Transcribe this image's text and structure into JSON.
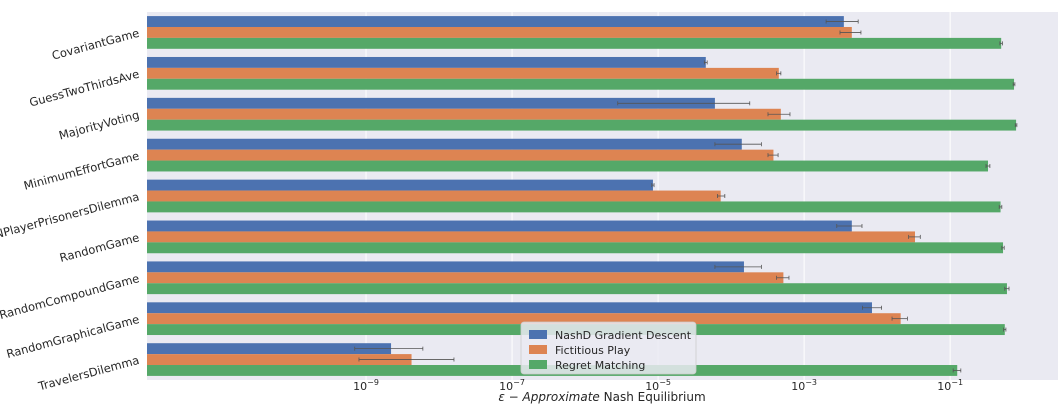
{
  "chart_data": {
    "type": "bar",
    "orientation": "horizontal",
    "x_scale": "log",
    "xlim": [
      1e-12,
      3
    ],
    "xticks": [
      {
        "value": 1e-09,
        "base": "10",
        "exp": "−9"
      },
      {
        "value": 1e-07,
        "base": "10",
        "exp": "−7"
      },
      {
        "value": 1e-05,
        "base": "10",
        "exp": "−5"
      },
      {
        "value": 0.001,
        "base": "10",
        "exp": "−3"
      },
      {
        "value": 0.1,
        "base": "10",
        "exp": "−1"
      }
    ],
    "xlabel": {
      "italic": "ε − Approximate",
      "rest": " Nash Equilibrium"
    },
    "categories": [
      "CovariantGame",
      "GuessTwoThirdsAve",
      "MajorityVoting",
      "MinimumEffortGame",
      "NPlayerPrisonersDilemma",
      "RandomGame",
      "RandomCompoundGame",
      "RandomGraphicalGame",
      "TravelersDilemma"
    ],
    "series": [
      {
        "name": "NashD Gradient Descent",
        "color": "#4c72b0",
        "values": [
          0.0035,
          4.5e-05,
          6e-05,
          0.00014,
          8.5e-06,
          0.0045,
          0.00015,
          0.0085,
          2.2e-09
        ],
        "err_low": [
          0.002,
          4.3e-05,
          2.8e-06,
          6e-05,
          8.2e-06,
          0.0028,
          6e-05,
          0.0063,
          7e-10
        ],
        "err_high": [
          0.0055,
          4.7e-05,
          0.00018,
          0.00026,
          8.8e-06,
          0.0062,
          0.00026,
          0.0115,
          6e-09
        ]
      },
      {
        "name": "Fictitious Play",
        "color": "#dd8452",
        "values": [
          0.0045,
          0.00045,
          0.00048,
          0.00038,
          7.2e-05,
          0.033,
          0.00052,
          0.021,
          4.2e-09
        ],
        "err_low": [
          0.0031,
          0.00042,
          0.00032,
          0.00032,
          6.5e-05,
          0.027,
          0.00042,
          0.016,
          8e-10
        ],
        "err_high": [
          0.006,
          0.00048,
          0.00064,
          0.00044,
          8.2e-05,
          0.039,
          0.00062,
          0.026,
          1.6e-08
        ]
      },
      {
        "name": "Regret Matching",
        "color": "#55a868",
        "values": [
          0.5,
          0.75,
          0.8,
          0.33,
          0.49,
          0.53,
          0.6,
          0.56,
          0.125
        ],
        "err_low": [
          0.48,
          0.73,
          0.78,
          0.31,
          0.47,
          0.51,
          0.56,
          0.54,
          0.11
        ],
        "err_high": [
          0.52,
          0.77,
          0.82,
          0.35,
          0.51,
          0.55,
          0.64,
          0.58,
          0.14
        ]
      }
    ],
    "legend_position": "lower-center",
    "grid": true,
    "plot_background": "#eaeaf2"
  }
}
